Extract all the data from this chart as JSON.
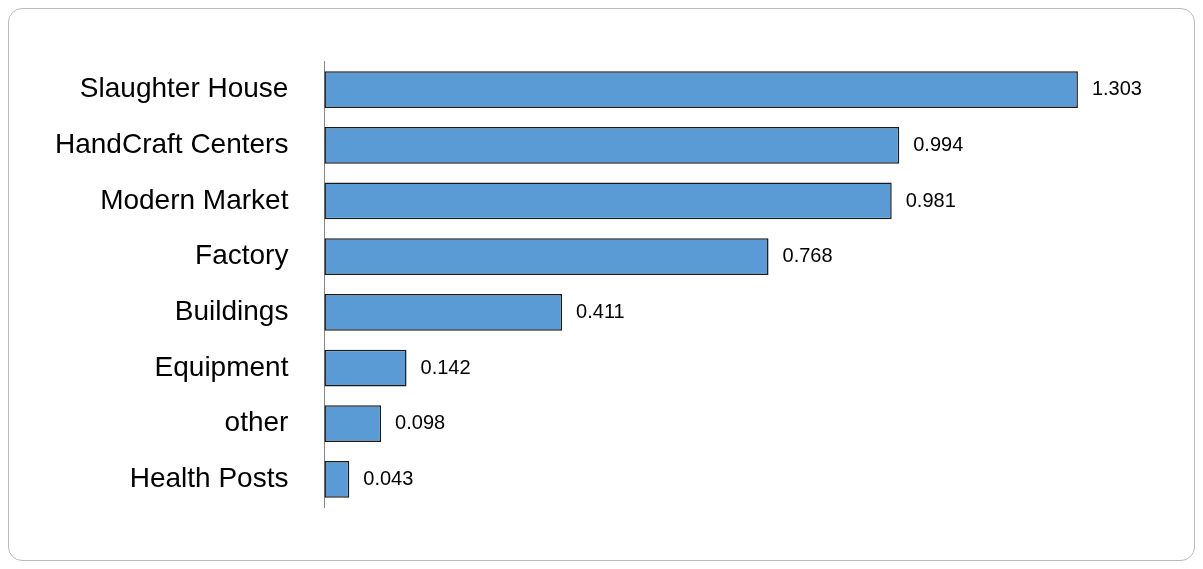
{
  "chart_data": {
    "type": "bar",
    "orientation": "horizontal",
    "categories": [
      "Slaughter House",
      "HandCraft Centers",
      "Modern Market",
      "Factory",
      "Buildings",
      "Equipment",
      "other",
      "Health Posts"
    ],
    "values": [
      1.303,
      0.994,
      0.981,
      0.768,
      0.411,
      0.142,
      0.098,
      0.043
    ],
    "color": "#5b9bd5",
    "data_labels": true
  }
}
